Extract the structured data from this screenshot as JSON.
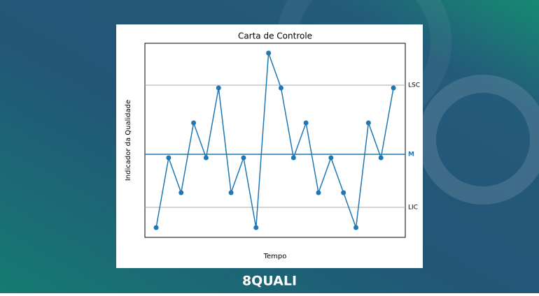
{
  "chart_data": {
    "type": "line",
    "title": "Carta de Controle",
    "xlabel": "Tempo",
    "ylabel": "Indicador da Qualidade",
    "x": [
      1,
      2,
      3,
      4,
      5,
      6,
      7,
      8,
      9,
      10,
      11,
      12,
      13,
      14,
      15,
      16,
      17,
      18,
      19,
      20
    ],
    "series": [
      {
        "name": "Indicador",
        "color": "#1f77b4",
        "values": [
          -2,
          0,
          -1,
          1,
          0,
          2,
          -1,
          0,
          -2,
          3,
          2,
          0,
          1,
          -1,
          0,
          -1,
          -2,
          1,
          0,
          2
        ]
      }
    ],
    "xlim": [
      0.1,
      20.95
    ],
    "ylim": [
      -2.28,
      3.28
    ],
    "lines": [
      {
        "label": "LSC",
        "value": 2.08,
        "color": "#aaaaaa"
      },
      {
        "label": "M",
        "value": 0.1,
        "color": "#1f77b4"
      },
      {
        "label": "LIC",
        "value": -1.42,
        "color": "#aaaaaa"
      }
    ]
  },
  "brand": "8QUALI"
}
